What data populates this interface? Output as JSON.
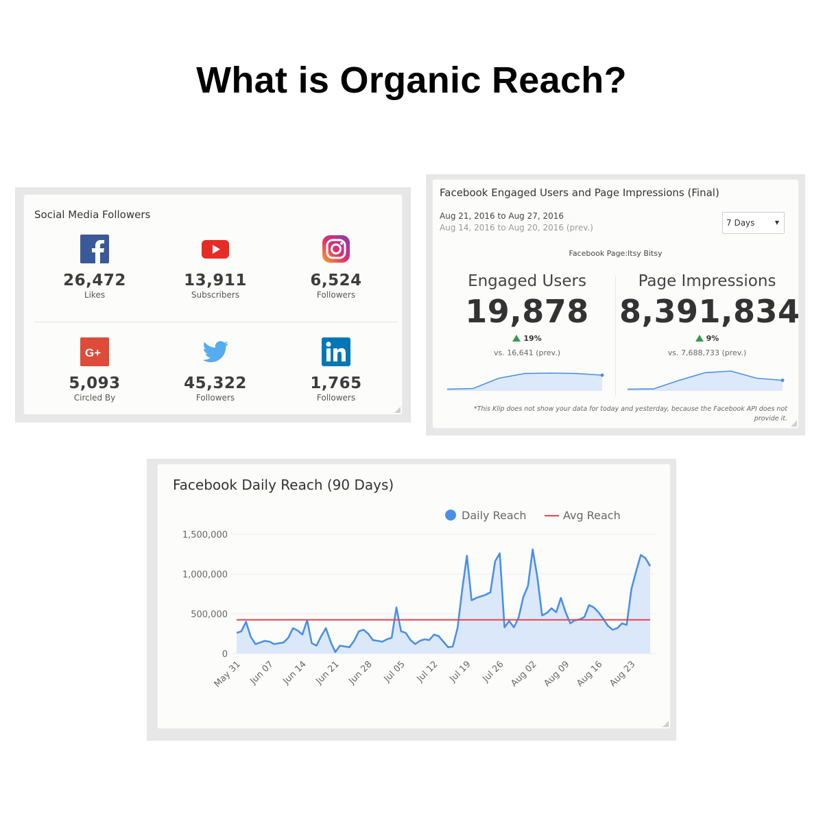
{
  "page": {
    "title": "What is Organic Reach?"
  },
  "social": {
    "title": "Social Media Followers",
    "items": [
      {
        "icon": "facebook-icon",
        "color": "#3b5998",
        "count": "26,472",
        "label": "Likes"
      },
      {
        "icon": "youtube-icon",
        "color": "#e52d27",
        "count": "13,911",
        "label": "Subscribers"
      },
      {
        "icon": "instagram-icon",
        "color": "#c13584",
        "count": "6,524",
        "label": "Followers"
      },
      {
        "icon": "google-plus-icon",
        "color": "#dd4b39",
        "count": "5,093",
        "label": "Circled By"
      },
      {
        "icon": "twitter-icon",
        "color": "#55acee",
        "count": "45,322",
        "label": "Followers"
      },
      {
        "icon": "linkedin-icon",
        "color": "#0077b5",
        "count": "1,765",
        "label": "Followers"
      }
    ]
  },
  "engaged": {
    "title": "Facebook Engaged Users and Page Impressions (Final)",
    "date_current": "Aug 21, 2016 to Aug 27, 2016",
    "date_prev": "Aug 14, 2016 to Aug 20, 2016 (prev.)",
    "range_select": "7 Days",
    "page_name": "Facebook Page:Itsy Bitsy",
    "metrics": [
      {
        "label": "Engaged Users",
        "value": "19,878",
        "change": "19%",
        "prev": "vs. 16,641 (prev.)",
        "trend": [
          0.02,
          0.05,
          0.55,
          0.78,
          0.8,
          0.78,
          0.7
        ]
      },
      {
        "label": "Page Impressions",
        "value": "8,391,834",
        "change": "9%",
        "prev": "vs. 7,688,733 (prev.)",
        "trend": [
          0.02,
          0.03,
          0.45,
          0.82,
          0.9,
          0.55,
          0.45
        ]
      }
    ],
    "accent_up": "#3a9a4c",
    "footnote": "*This Klip does not show your data for today and yesterday, because the Facebook API does not provide it."
  },
  "reach": {
    "title": "Facebook Daily Reach (90 Days)"
  },
  "chart_data": {
    "type": "area",
    "title": "Facebook Daily Reach (90 Days)",
    "xlabel": "",
    "ylabel": "",
    "ylim": [
      0,
      1500000
    ],
    "yticks": [
      "0",
      "500,000",
      "1,000,000",
      "1,500,000"
    ],
    "ytick_values": [
      0,
      500000,
      1000000,
      1500000
    ],
    "x_tick_labels": [
      "May 31",
      "Jun 07",
      "Jun 14",
      "Jun 21",
      "Jun 28",
      "Jul 05",
      "Jul 12",
      "Jul 19",
      "Jul 26",
      "Aug 02",
      "Aug 09",
      "Aug 16",
      "Aug 23"
    ],
    "legend_position": "top-right",
    "grid": true,
    "series": [
      {
        "name": "Daily Reach",
        "color": "#4a8fe7",
        "fill": "#dbe8fa",
        "values": [
          260000,
          280000,
          400000,
          210000,
          120000,
          140000,
          160000,
          150000,
          120000,
          130000,
          140000,
          200000,
          320000,
          290000,
          240000,
          420000,
          130000,
          100000,
          220000,
          320000,
          150000,
          20000,
          100000,
          90000,
          80000,
          160000,
          280000,
          300000,
          250000,
          170000,
          160000,
          150000,
          180000,
          200000,
          580000,
          280000,
          260000,
          170000,
          120000,
          160000,
          180000,
          170000,
          240000,
          220000,
          150000,
          80000,
          90000,
          320000,
          800000,
          1230000,
          670000,
          700000,
          720000,
          740000,
          770000,
          1160000,
          1260000,
          330000,
          410000,
          330000,
          450000,
          710000,
          850000,
          1310000,
          960000,
          480000,
          510000,
          570000,
          520000,
          700000,
          520000,
          380000,
          420000,
          430000,
          460000,
          610000,
          580000,
          520000,
          440000,
          350000,
          300000,
          320000,
          380000,
          360000,
          810000,
          1030000,
          1240000,
          1200000,
          1100000
        ]
      },
      {
        "name": "Avg Reach",
        "color": "#e8414f",
        "values_constant": 425000
      }
    ]
  }
}
